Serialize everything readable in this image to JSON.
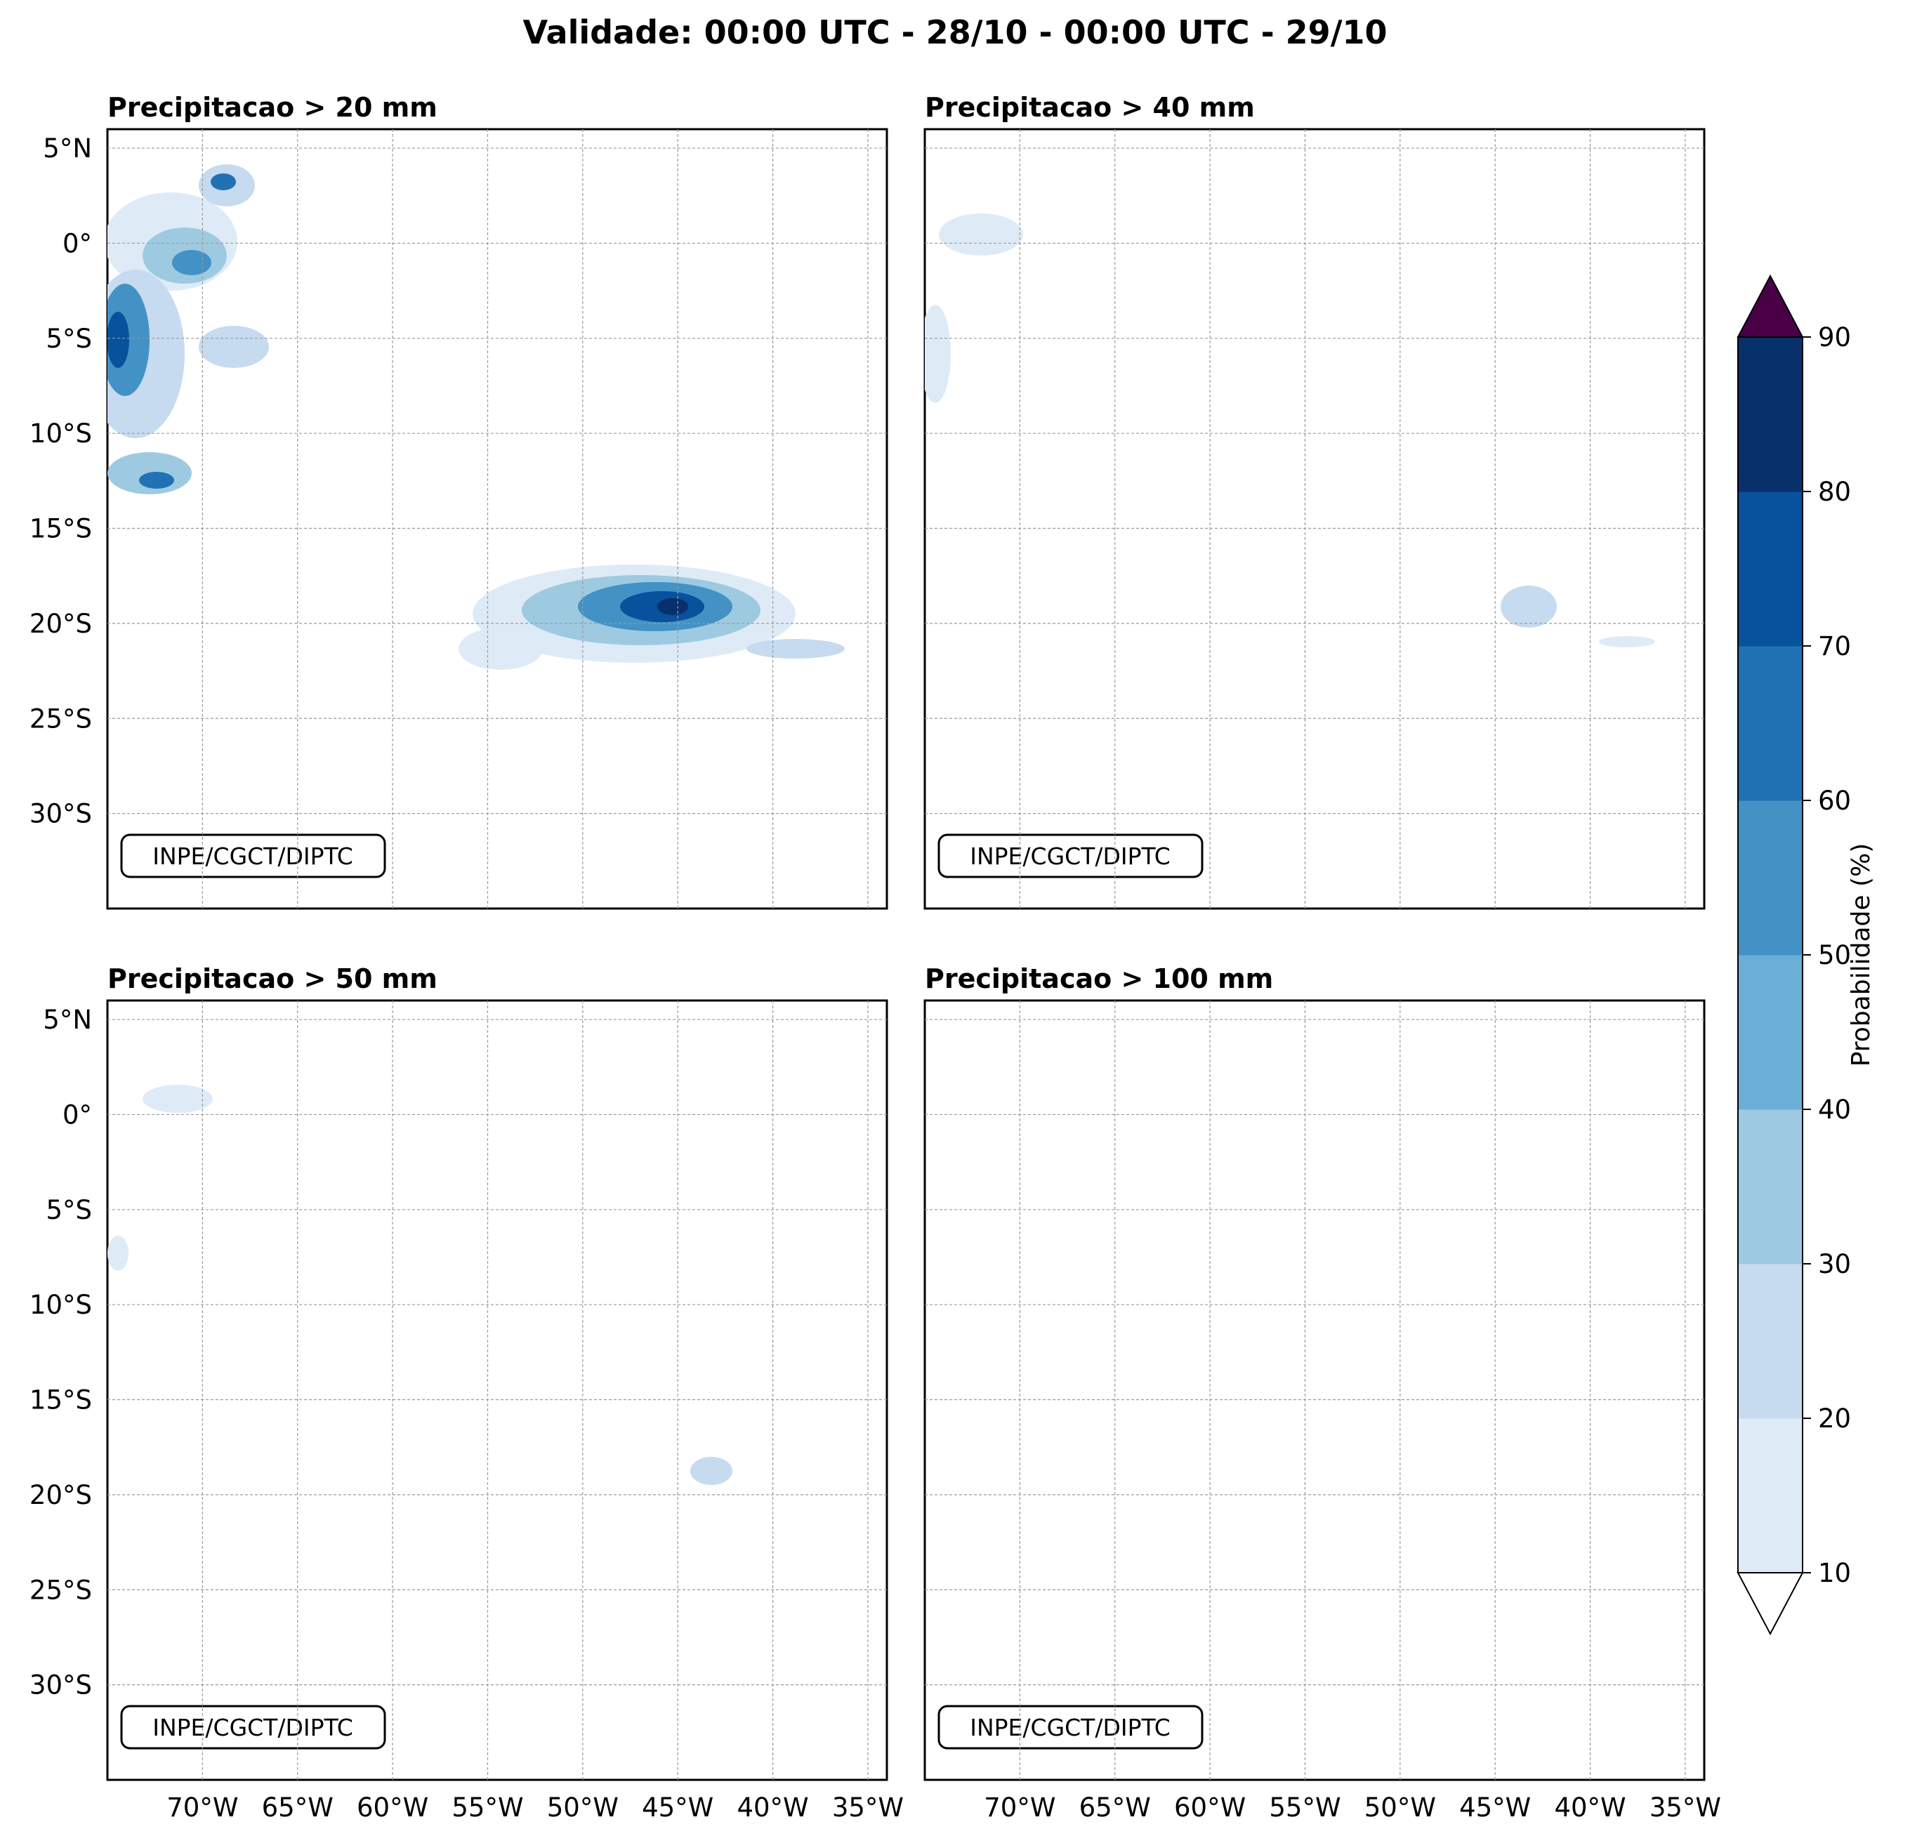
{
  "title": "Validade: 00:00 UTC - 28/10 - 00:00 UTC - 29/10",
  "panels": [
    {
      "title": "Precipitacao > 20 mm",
      "credit": "INPE/CGCT/DIPTC"
    },
    {
      "title": "Precipitacao > 40 mm",
      "credit": "INPE/CGCT/DIPTC"
    },
    {
      "title": "Precipitacao > 50 mm",
      "credit": "INPE/CGCT/DIPTC"
    },
    {
      "title": "Precipitacao > 100 mm",
      "credit": "INPE/CGCT/DIPTC"
    }
  ],
  "map": {
    "lat_ticks": [
      "5°N",
      "0°",
      "5°S",
      "10°S",
      "15°S",
      "20°S",
      "25°S",
      "30°S"
    ],
    "lon_ticks": [
      "70°W",
      "65°W",
      "60°W",
      "55°W",
      "50°W",
      "45°W",
      "40°W",
      "35°W"
    ],
    "lat_values": [
      5,
      0,
      -5,
      -10,
      -15,
      -20,
      -25,
      -30
    ],
    "lon_values": [
      -70,
      -65,
      -60,
      -55,
      -50,
      -45,
      -40,
      -35
    ],
    "extent": {
      "lon_min": -75,
      "lon_max": -34,
      "lat_min": -35,
      "lat_max": 6
    }
  },
  "colorbar": {
    "label": "Probabilidade (%)",
    "ticks": [
      "10",
      "20",
      "30",
      "40",
      "50",
      "60",
      "70",
      "80",
      "90"
    ],
    "colors": [
      "#deebf7",
      "#c6dbef",
      "#9ecae1",
      "#6baed6",
      "#4292c6",
      "#2171b5",
      "#08519c",
      "#08306b"
    ],
    "over_color": "#4a0045"
  }
}
